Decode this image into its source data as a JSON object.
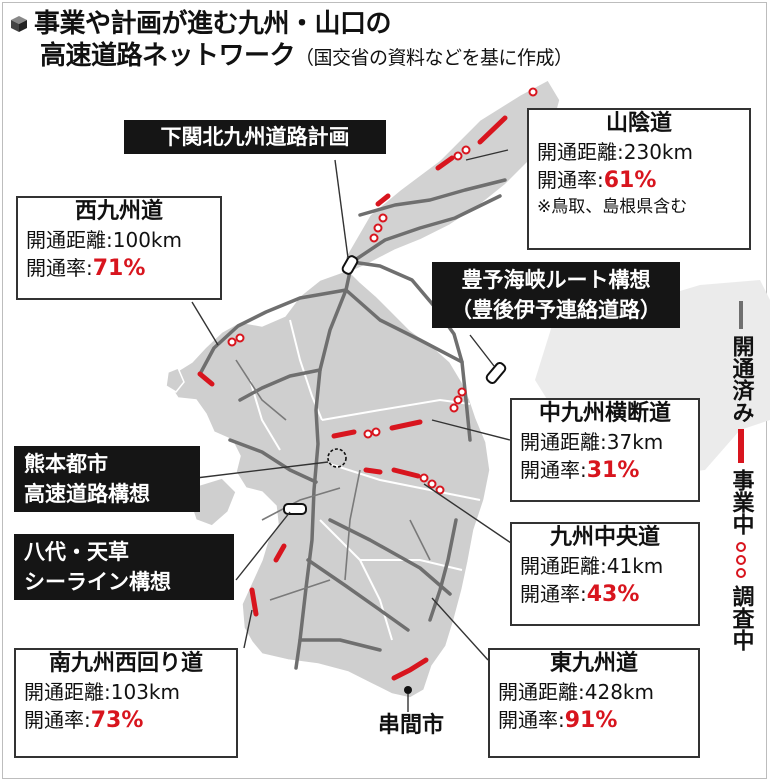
{
  "title": {
    "line1": "事業や計画が進む九州・山口の",
    "line2": "高速道路ネットワーク",
    "source": "（国交省の資料などを基に作成）"
  },
  "roads": [
    {
      "name": "山陰道",
      "distance_label": "開通距離",
      "distance": "230km",
      "rate_label": "開通率",
      "rate": "61%",
      "note": "※鳥取、島根県含む"
    },
    {
      "name": "西九州道",
      "distance_label": "開通距離",
      "distance": "100km",
      "rate_label": "開通率",
      "rate": "71%"
    },
    {
      "name": "中九州横断道",
      "distance_label": "開通距離",
      "distance": "37km",
      "rate_label": "開通率",
      "rate": "31%"
    },
    {
      "name": "九州中央道",
      "distance_label": "開通距離",
      "distance": "41km",
      "rate_label": "開通率",
      "rate": "43%"
    },
    {
      "name": "南九州西回り道",
      "distance_label": "開通距離",
      "distance": "103km",
      "rate_label": "開通率",
      "rate": "73%"
    },
    {
      "name": "東九州道",
      "distance_label": "開通距離",
      "distance": "428km",
      "rate_label": "開通率",
      "rate": "91%"
    }
  ],
  "plans": {
    "shimonoseki": "下関北九州道路計画",
    "hoyo_line1": "豊予海峡ルート構想",
    "hoyo_line2": "（豊後伊予連絡道路）",
    "kumamoto_line1": "熊本都市",
    "kumamoto_line2": "高速道路構想",
    "yatsushiro_line1": "八代・天草",
    "yatsushiro_line2": "シーライン構想"
  },
  "city_label": "串間市",
  "legend": {
    "open": "開通済み",
    "construction": "事業中",
    "survey": "調査中"
  },
  "colors": {
    "accent_red": "#d8151e",
    "land": "#cfcfcf",
    "sea_land_far": "#e6e6e6",
    "road_gray": "#6f6f6f"
  }
}
